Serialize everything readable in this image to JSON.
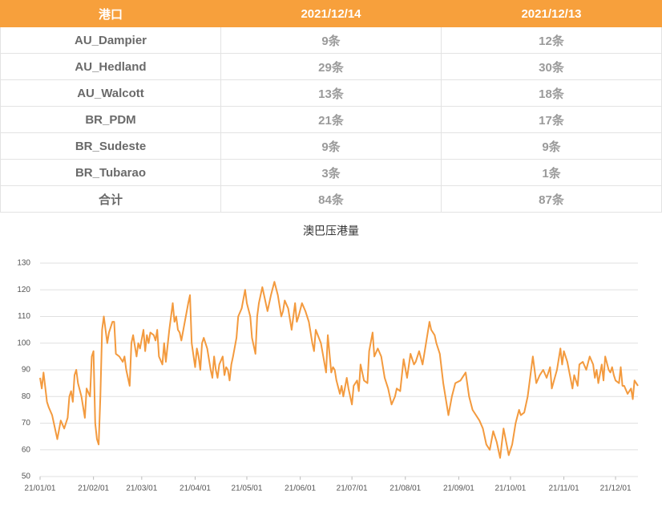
{
  "table": {
    "header": [
      "港口",
      "2021/12/14",
      "2021/12/13"
    ],
    "rows": [
      [
        "AU_Dampier",
        "9条",
        "12条"
      ],
      [
        "AU_Hedland",
        "29条",
        "30条"
      ],
      [
        "AU_Walcott",
        "13条",
        "18条"
      ],
      [
        "BR_PDM",
        "21条",
        "17条"
      ],
      [
        "BR_Sudeste",
        "9条",
        "9条"
      ],
      [
        "BR_Tubarao",
        "3条",
        "1条"
      ],
      [
        "合计",
        "84条",
        "87条"
      ]
    ]
  },
  "chart_data": {
    "type": "line",
    "title": "澳巴压港量",
    "color": "#f39a3e",
    "grid": true,
    "ylim": [
      50,
      130
    ],
    "yticks": [
      50,
      60,
      70,
      80,
      90,
      100,
      110,
      120,
      130
    ],
    "xlim": [
      0,
      347
    ],
    "xticks": [
      {
        "value": 0,
        "label": "21/01/01"
      },
      {
        "value": 31,
        "label": "21/02/01"
      },
      {
        "value": 59,
        "label": "21/03/01"
      },
      {
        "value": 90,
        "label": "21/04/01"
      },
      {
        "value": 120,
        "label": "21/05/01"
      },
      {
        "value": 151,
        "label": "21/06/01"
      },
      {
        "value": 181,
        "label": "21/07/01"
      },
      {
        "value": 212,
        "label": "21/08/01"
      },
      {
        "value": 243,
        "label": "21/09/01"
      },
      {
        "value": 273,
        "label": "21/10/01"
      },
      {
        "value": 304,
        "label": "21/11/01"
      },
      {
        "value": 334,
        "label": "21/12/01"
      }
    ],
    "x": [
      0,
      1,
      2,
      4,
      5,
      7,
      8,
      10,
      12,
      14,
      16,
      17,
      18,
      19,
      20,
      21,
      22,
      24,
      26,
      27,
      29,
      30,
      31,
      32,
      33,
      34,
      35,
      36,
      37,
      39,
      40,
      41,
      42,
      43,
      44,
      46,
      48,
      49,
      50,
      52,
      53,
      54,
      56,
      57,
      58,
      60,
      61,
      62,
      63,
      64,
      66,
      67,
      68,
      69,
      71,
      72,
      73,
      75,
      77,
      78,
      79,
      80,
      81,
      82,
      84,
      86,
      87,
      88,
      90,
      91,
      92,
      93,
      94,
      95,
      97,
      99,
      100,
      101,
      102,
      103,
      104,
      106,
      107,
      108,
      109,
      110,
      111,
      112,
      114,
      115,
      117,
      119,
      120,
      122,
      123,
      125,
      126,
      127,
      129,
      130,
      132,
      134,
      136,
      138,
      140,
      141,
      142,
      144,
      146,
      148,
      149,
      150,
      152,
      154,
      156,
      158,
      159,
      160,
      163,
      166,
      167,
      168,
      169,
      170,
      171,
      172,
      174,
      175,
      176,
      178,
      179,
      181,
      182,
      184,
      185,
      186,
      188,
      190,
      191,
      193,
      194,
      196,
      198,
      200,
      202,
      204,
      206,
      207,
      209,
      211,
      213,
      215,
      217,
      218,
      220,
      222,
      224,
      226,
      227,
      229,
      230,
      232,
      234,
      236,
      237,
      239,
      241,
      244,
      247,
      249,
      251,
      255,
      257,
      259,
      261,
      263,
      265,
      267,
      269,
      272,
      274,
      276,
      278,
      279,
      281,
      283,
      285,
      286,
      288,
      290,
      292,
      294,
      296,
      297,
      300,
      302,
      303,
      304,
      306,
      309,
      310,
      312,
      313,
      315,
      317,
      319,
      321,
      322,
      323,
      324,
      326,
      327,
      328,
      330,
      331,
      332,
      333,
      334,
      336,
      337,
      338,
      339,
      341,
      343,
      344,
      345,
      347
    ],
    "values": [
      87,
      83,
      89,
      78,
      76,
      73,
      70,
      64,
      71,
      68,
      72,
      80,
      82,
      78,
      88,
      90,
      85,
      80,
      72,
      83,
      80,
      95,
      97,
      70,
      64,
      62,
      80,
      105,
      110,
      100,
      104,
      106,
      108,
      108,
      96,
      95,
      93,
      95,
      90,
      84,
      100,
      103,
      95,
      100,
      98,
      105,
      97,
      103,
      100,
      104,
      103,
      101,
      105,
      95,
      92,
      100,
      93,
      105,
      115,
      108,
      110,
      105,
      104,
      101,
      108,
      115,
      118,
      100,
      91,
      98,
      95,
      90,
      100,
      102,
      98,
      90,
      87,
      95,
      90,
      87,
      92,
      95,
      88,
      91,
      90,
      86,
      92,
      95,
      102,
      110,
      113,
      120,
      115,
      110,
      102,
      96,
      110,
      115,
      121,
      118,
      112,
      118,
      123,
      118,
      110,
      112,
      116,
      113,
      105,
      115,
      108,
      110,
      115,
      112,
      108,
      100,
      97,
      105,
      100,
      89,
      103,
      96,
      89,
      91,
      90,
      86,
      81,
      84,
      80,
      87,
      83,
      77,
      84,
      86,
      82,
      92,
      86,
      85,
      97,
      104,
      95,
      98,
      95,
      87,
      83,
      77,
      80,
      83,
      82,
      94,
      87,
      96,
      92,
      93,
      97,
      92,
      100,
      108,
      105,
      103,
      100,
      96,
      85,
      77,
      73,
      80,
      85,
      86,
      89,
      80,
      75,
      71,
      68,
      62,
      60,
      67,
      63,
      57,
      68,
      58,
      62,
      70,
      75,
      73,
      74,
      80,
      90,
      95,
      85,
      88,
      90,
      87,
      91,
      83,
      90,
      98,
      92,
      97,
      93,
      83,
      88,
      84,
      92,
      93,
      90,
      95,
      92,
      87,
      90,
      85,
      92,
      86,
      95,
      90,
      89,
      91,
      88,
      86,
      85,
      91,
      84,
      84,
      81,
      83,
      79,
      86,
      84
    ]
  }
}
